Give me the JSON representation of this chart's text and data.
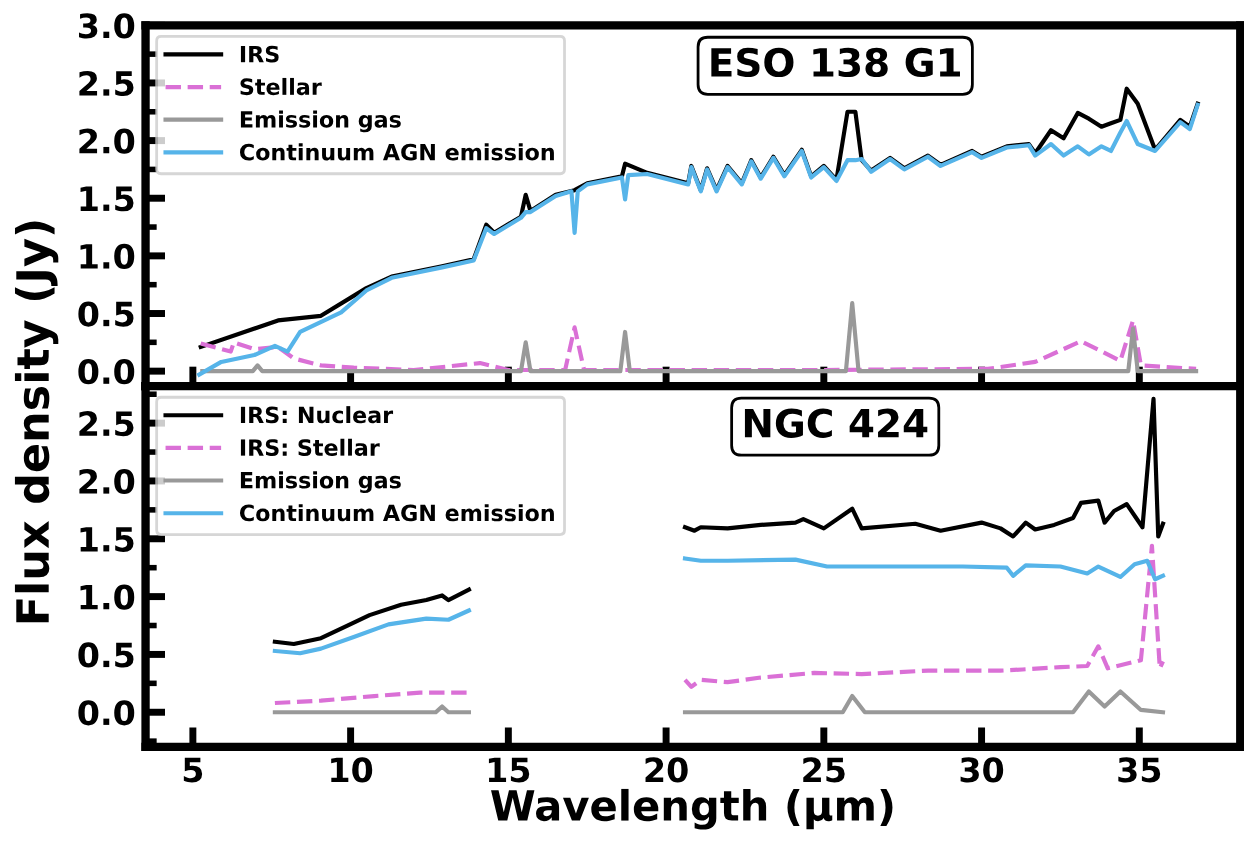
{
  "chart_data": [
    {
      "type": "line",
      "title": "ESO 138 G1",
      "ylabel": "Flux density (Jy)",
      "xlim": [
        3.5,
        38.2
      ],
      "ylim": [
        -0.13,
        3.0
      ],
      "xticks": [
        5,
        10,
        15,
        20,
        25,
        30,
        35
      ],
      "yticks": [
        {
          "value": 0,
          "label": "0.0"
        },
        {
          "value": 0.5,
          "label": "0.5"
        },
        {
          "value": 1,
          "label": "1.0"
        },
        {
          "value": 1.5,
          "label": "1.5"
        },
        {
          "value": 2,
          "label": "2.0"
        },
        {
          "value": 2.5,
          "label": "2.5"
        },
        {
          "value": 3,
          "label": "3.0"
        }
      ],
      "tick_labels": "y",
      "legend": "top left",
      "grid": false,
      "series": [
        {
          "name": "IRS",
          "color": "#000000",
          "line_style": "solid",
          "x": [
            5.25,
            7.7,
            9.06,
            10.5,
            11.3,
            12.9,
            13.9,
            14.3,
            14.55,
            15.4,
            15.55,
            15.7,
            16.5,
            17.1,
            17.5,
            18.6,
            18.7,
            19.4,
            20.7,
            20.8,
            21.1,
            21.3,
            21.6,
            21.95,
            22.4,
            22.7,
            23.0,
            23.4,
            23.75,
            24.3,
            24.6,
            25.0,
            25.4,
            25.75,
            26.0,
            26.2,
            26.5,
            27.1,
            27.55,
            28.3,
            28.7,
            29.7,
            30.0,
            30.8,
            31.5,
            31.7,
            32.2,
            32.6,
            33.05,
            33.4,
            33.8,
            34.1,
            34.4,
            34.6,
            34.95,
            35.5,
            36.3,
            36.6,
            36.85
          ],
          "values": [
            0.21,
            0.44,
            0.48,
            0.72,
            0.82,
            0.91,
            0.97,
            1.27,
            1.2,
            1.34,
            1.53,
            1.39,
            1.53,
            1.57,
            1.63,
            1.69,
            1.8,
            1.72,
            1.63,
            1.78,
            1.57,
            1.76,
            1.57,
            1.78,
            1.63,
            1.83,
            1.68,
            1.86,
            1.7,
            1.92,
            1.69,
            1.78,
            1.66,
            2.25,
            2.25,
            1.83,
            1.74,
            1.85,
            1.76,
            1.87,
            1.79,
            1.91,
            1.86,
            1.95,
            1.97,
            1.89,
            2.09,
            2.02,
            2.24,
            2.19,
            2.12,
            2.15,
            2.18,
            2.45,
            2.32,
            1.92,
            2.18,
            2.12,
            2.32
          ]
        },
        {
          "name": "Stellar",
          "color": "#da70d6",
          "line_style": "dashed",
          "x": [
            5.25,
            6.2,
            6.3,
            6.95,
            7.7,
            8.2,
            9.06,
            10.1,
            12.0,
            14.1,
            15.0,
            16.8,
            17.1,
            17.4,
            20.0,
            25.0,
            30.2,
            31.7,
            33.15,
            34.4,
            34.8,
            35.05,
            36.8
          ],
          "values": [
            0.24,
            0.17,
            0.25,
            0.19,
            0.21,
            0.11,
            0.05,
            0.03,
            0.01,
            0.07,
            0.01,
            0.01,
            0.38,
            0.01,
            0.01,
            0.01,
            0.02,
            0.08,
            0.26,
            0.09,
            0.44,
            0.05,
            0.02
          ]
        },
        {
          "name": "Emission gas",
          "color": "#999999",
          "line_style": "solid",
          "x": [
            5.3,
            6.9,
            7.05,
            7.2,
            15.4,
            15.55,
            15.7,
            18.55,
            18.7,
            18.85,
            25.7,
            25.9,
            26.1,
            34.65,
            34.8,
            34.95,
            36.8
          ],
          "values": [
            0,
            0,
            0.05,
            0,
            0,
            0.25,
            0,
            0,
            0.34,
            0,
            0,
            0.59,
            0,
            0,
            0.37,
            0,
            0
          ]
        },
        {
          "name": "Continuum AGN emission",
          "color": "#56b4e9",
          "line_style": "solid",
          "x": [
            5.2,
            5.9,
            6.95,
            7.6,
            8.0,
            8.4,
            9.7,
            10.5,
            11.3,
            12.9,
            13.9,
            14.3,
            14.55,
            15.4,
            15.55,
            15.7,
            16.5,
            17.0,
            17.1,
            17.2,
            17.5,
            18.6,
            18.7,
            18.8,
            19.4,
            20.7,
            20.8,
            21.1,
            21.3,
            21.6,
            21.95,
            22.4,
            22.7,
            23.0,
            23.4,
            23.75,
            24.3,
            24.6,
            25.0,
            25.4,
            25.75,
            26.0,
            26.2,
            26.5,
            27.1,
            27.55,
            28.3,
            28.7,
            29.7,
            30.0,
            30.8,
            31.5,
            31.7,
            32.2,
            32.6,
            33.05,
            33.4,
            33.8,
            34.1,
            34.4,
            34.6,
            34.95,
            35.5,
            36.3,
            36.6,
            36.85
          ],
          "values": [
            -0.03,
            0.08,
            0.14,
            0.22,
            0.17,
            0.34,
            0.51,
            0.7,
            0.81,
            0.9,
            0.96,
            1.24,
            1.19,
            1.33,
            1.38,
            1.38,
            1.52,
            1.56,
            1.2,
            1.56,
            1.62,
            1.68,
            1.49,
            1.7,
            1.71,
            1.62,
            1.77,
            1.56,
            1.75,
            1.56,
            1.77,
            1.62,
            1.82,
            1.67,
            1.85,
            1.69,
            1.91,
            1.68,
            1.77,
            1.65,
            1.83,
            1.83,
            1.84,
            1.73,
            1.84,
            1.75,
            1.86,
            1.78,
            1.9,
            1.85,
            1.94,
            1.96,
            1.87,
            1.97,
            1.87,
            1.95,
            1.88,
            1.95,
            1.91,
            2.07,
            2.17,
            1.97,
            1.91,
            2.16,
            2.1,
            2.31
          ]
        }
      ]
    },
    {
      "type": "line",
      "title": "NGC 424",
      "xlabel": "Wavelength (μm)",
      "xlim": [
        3.5,
        38.2
      ],
      "ylim": [
        -0.3,
        2.82
      ],
      "xticks": [
        5,
        10,
        15,
        20,
        25,
        30,
        35
      ],
      "yticks": [
        {
          "value": 0,
          "label": "0.0"
        },
        {
          "value": 0.5,
          "label": "0.5"
        },
        {
          "value": 1,
          "label": "1.0"
        },
        {
          "value": 1.5,
          "label": "1.5"
        },
        {
          "value": 2,
          "label": "2.0"
        },
        {
          "value": 2.5,
          "label": "2.5"
        }
      ],
      "legend": "top left",
      "grid": false,
      "series": [
        {
          "name": "IRS: Nuclear",
          "color": "#000000",
          "line_style": "solid",
          "x": [
            7.6,
            8.2,
            9.06,
            9.9,
            10.6,
            11.6,
            12.4,
            12.9,
            13.1,
            13.75,
            17.0,
            20.6,
            20.9,
            21.1,
            21.95,
            23.0,
            24.1,
            24.35,
            25.0,
            25.9,
            26.2,
            27.9,
            28.7,
            30.0,
            30.6,
            31.0,
            31.4,
            31.7,
            32.3,
            32.9,
            33.15,
            33.7,
            33.9,
            34.2,
            34.6,
            35.1,
            35.45,
            35.6,
            35.75
          ],
          "values": [
            0.61,
            0.59,
            0.64,
            0.75,
            0.84,
            0.93,
            0.97,
            1.01,
            0.97,
            1.06,
            null,
            1.6,
            1.57,
            1.6,
            1.59,
            1.62,
            1.64,
            1.67,
            1.59,
            1.76,
            1.59,
            1.63,
            1.57,
            1.64,
            1.59,
            1.52,
            1.64,
            1.58,
            1.62,
            1.68,
            1.81,
            1.83,
            1.64,
            1.74,
            1.8,
            1.6,
            2.71,
            1.52,
            1.63
          ]
        },
        {
          "name": "IRS: Stellar",
          "color": "#da70d6",
          "line_style": "dashed",
          "x": [
            7.6,
            9.06,
            10.75,
            12.2,
            13.75,
            17.0,
            20.6,
            20.8,
            21.1,
            21.95,
            23.0,
            24.7,
            26.2,
            28.3,
            30.6,
            31.3,
            32.5,
            33.35,
            33.7,
            34.0,
            35.05,
            35.4,
            35.65,
            35.75
          ],
          "values": [
            0.08,
            0.1,
            0.14,
            0.17,
            0.17,
            null,
            0.28,
            0.22,
            0.28,
            0.26,
            0.3,
            0.34,
            0.33,
            0.36,
            0.36,
            0.37,
            0.39,
            0.4,
            0.57,
            0.38,
            0.45,
            1.44,
            0.38,
            0.44
          ]
        },
        {
          "name": "Emission gas",
          "color": "#999999",
          "line_style": "solid",
          "x": [
            7.6,
            12.7,
            12.9,
            13.1,
            13.75,
            17.0,
            20.6,
            25.6,
            25.9,
            26.3,
            32.9,
            33.4,
            33.9,
            34.4,
            35.05,
            35.75
          ],
          "values": [
            0,
            0,
            0.05,
            0,
            0,
            null,
            0,
            0,
            0.14,
            0,
            0,
            0.18,
            0.05,
            0.18,
            0.02,
            0
          ]
        },
        {
          "name": "Continuum AGN emission",
          "color": "#56b4e9",
          "line_style": "solid",
          "x": [
            7.6,
            8.4,
            9.06,
            10.1,
            11.2,
            12.4,
            13.1,
            13.75,
            17.0,
            20.6,
            21.1,
            21.95,
            24.1,
            25.1,
            27.3,
            29.4,
            30.8,
            31.0,
            31.4,
            32.5,
            33.35,
            33.7,
            34.4,
            34.85,
            35.25,
            35.5,
            35.75
          ],
          "values": [
            0.53,
            0.51,
            0.55,
            0.65,
            0.76,
            0.81,
            0.8,
            0.88,
            null,
            1.33,
            1.31,
            1.31,
            1.32,
            1.26,
            1.26,
            1.26,
            1.25,
            1.18,
            1.27,
            1.26,
            1.2,
            1.26,
            1.17,
            1.28,
            1.31,
            1.15,
            1.18
          ]
        }
      ]
    }
  ]
}
